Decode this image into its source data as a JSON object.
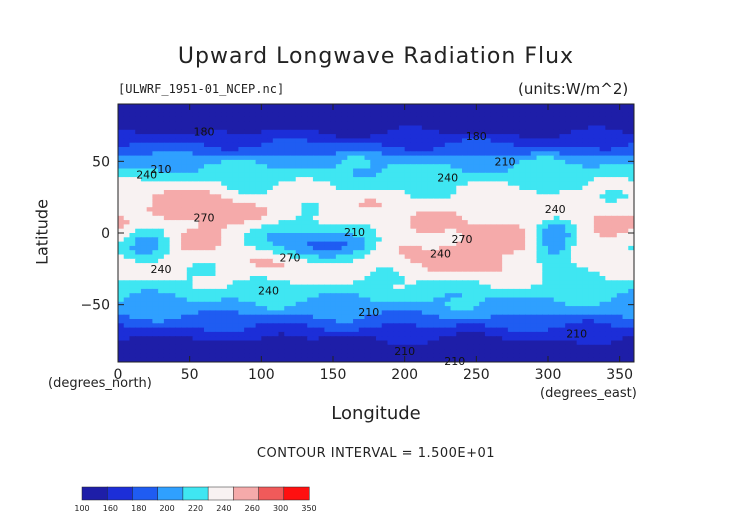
{
  "title": "Upward Longwave Radiation Flux",
  "file_tag": "[ULWRF_1951-01_NCEP.nc]",
  "units_label": "(units:W/m^2)",
  "contour_interval": "CONTOUR INTERVAL = 1.500E+01",
  "x_sub_label": "(degrees_north)",
  "x_sub_label2": "(degrees_east)",
  "chart_data": {
    "type": "heatmap",
    "title": "Upward Longwave Radiation Flux",
    "xlabel": "Longitude",
    "ylabel": "Latitude",
    "xlim": [
      0,
      360
    ],
    "ylim": [
      -90,
      90
    ],
    "x_ticks": [
      0,
      50,
      100,
      150,
      200,
      250,
      300,
      350
    ],
    "y_ticks": [
      -50,
      0,
      50
    ],
    "contour_labels": [
      {
        "lon": 60,
        "lat": 68,
        "text": "180"
      },
      {
        "lon": 250,
        "lat": 65,
        "text": "180"
      },
      {
        "lon": 20,
        "lat": 38,
        "text": "240"
      },
      {
        "lon": 30,
        "lat": 42,
        "text": "210"
      },
      {
        "lon": 230,
        "lat": 36,
        "text": "240"
      },
      {
        "lon": 270,
        "lat": 47,
        "text": "210"
      },
      {
        "lon": 60,
        "lat": 8,
        "text": "270"
      },
      {
        "lon": 165,
        "lat": -2,
        "text": "210"
      },
      {
        "lon": 240,
        "lat": -7,
        "text": "270"
      },
      {
        "lon": 225,
        "lat": -17,
        "text": "240"
      },
      {
        "lon": 305,
        "lat": 14,
        "text": "240"
      },
      {
        "lon": 30,
        "lat": -28,
        "text": "240"
      },
      {
        "lon": 120,
        "lat": -20,
        "text": "270"
      },
      {
        "lon": 105,
        "lat": -43,
        "text": "240"
      },
      {
        "lon": 175,
        "lat": -58,
        "text": "210"
      },
      {
        "lon": 320,
        "lat": -73,
        "text": "210"
      },
      {
        "lon": 200,
        "lat": -85,
        "text": "210"
      },
      {
        "lon": 235,
        "lat": -92,
        "text": "210"
      }
    ],
    "colorbar": {
      "levels": [
        100,
        160,
        180,
        200,
        220,
        240,
        260,
        300,
        350
      ],
      "colors": [
        "#1e1ea8",
        "#1c2ed8",
        "#1f5cf2",
        "#2fa0ff",
        "#3fe6f2",
        "#f8f2f2",
        "#f5aaaa",
        "#f05a5a",
        "#ff1010"
      ]
    }
  }
}
